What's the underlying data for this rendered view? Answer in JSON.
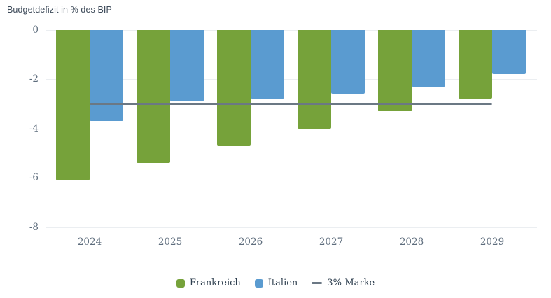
{
  "chart_data": {
    "type": "bar",
    "title": "Budgetdefizit in % des BIP",
    "categories": [
      "2024",
      "2025",
      "2026",
      "2027",
      "2028",
      "2029"
    ],
    "series": [
      {
        "name": "Frankreich",
        "color": "#76a23a",
        "values": [
          -6.1,
          -5.4,
          -4.7,
          -4.0,
          -3.3,
          -2.8
        ]
      },
      {
        "name": "Italien",
        "color": "#5a9bd0",
        "values": [
          -3.7,
          -2.9,
          -2.8,
          -2.6,
          -2.3,
          -1.8
        ]
      }
    ],
    "threshold": {
      "name": "3%-Marke",
      "value": -3,
      "color": "#6b7884"
    },
    "y_ticks": [
      0,
      -2,
      -4,
      -6,
      -8
    ],
    "ylim": [
      0,
      -8
    ],
    "grid": true,
    "legend_position": "bottom"
  }
}
